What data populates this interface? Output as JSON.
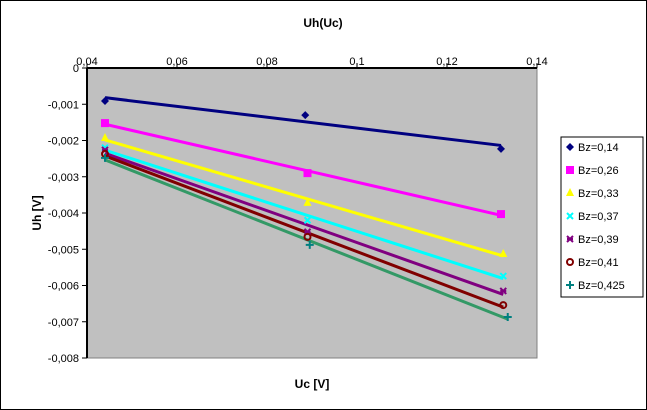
{
  "chart_data": {
    "type": "scatter",
    "title": "Uh(Uc)",
    "xlabel": "Uc [V]",
    "ylabel": "Uh [V]",
    "xlim": [
      0.04,
      0.14
    ],
    "ylim": [
      -0.008,
      0
    ],
    "x_ticks": [
      "0,04",
      "0,06",
      "0,08",
      "0,1",
      "0,12",
      "0,14"
    ],
    "y_ticks": [
      "0",
      "-0,001",
      "-0,002",
      "-0,003",
      "-0,004",
      "-0,005",
      "-0,006",
      "-0,007",
      "-0,008"
    ],
    "grid": false,
    "legend_position": "right",
    "trendlines": "linear",
    "plot_background": "#C0C0C0",
    "series": [
      {
        "name": "Bz=0,14",
        "marker": "diamond",
        "color": "#000080",
        "line_color": "#000080",
        "x": [
          0.044,
          0.0885,
          0.132
        ],
        "y": [
          -0.00091,
          -0.0013,
          -0.00223
        ]
      },
      {
        "name": "Bz=0,26",
        "marker": "square",
        "color": "#FF00FF",
        "line_color": "#FF00FF",
        "x": [
          0.044,
          0.089,
          0.132
        ],
        "y": [
          -0.00152,
          -0.0029,
          -0.00403
        ]
      },
      {
        "name": "Bz=0,33",
        "marker": "triangle",
        "color": "#FFFF00",
        "line_color": "#FFFF00",
        "x": [
          0.044,
          0.089,
          0.1325
        ],
        "y": [
          -0.00193,
          -0.00372,
          -0.00513
        ]
      },
      {
        "name": "Bz=0,37",
        "marker": "x",
        "color": "#00FFFF",
        "line_color": "#00FFFF",
        "x": [
          0.044,
          0.089,
          0.1325
        ],
        "y": [
          -0.0022,
          -0.0042,
          -0.00574
        ]
      },
      {
        "name": "Bz=0,39",
        "marker": "star",
        "color": "#800080",
        "line_color": "#800080",
        "x": [
          0.044,
          0.089,
          0.1325
        ],
        "y": [
          -0.00226,
          -0.00452,
          -0.00615
        ]
      },
      {
        "name": "Bz=0,41",
        "marker": "circle",
        "color": "#800000",
        "line_color": "#800000",
        "x": [
          0.044,
          0.089,
          0.1325
        ],
        "y": [
          -0.00237,
          -0.00466,
          -0.00654
        ]
      },
      {
        "name": "Bz=0,425",
        "marker": "plus",
        "color": "#008080",
        "line_color": "#339966",
        "x": [
          0.044,
          0.0895,
          0.1335
        ],
        "y": [
          -0.00248,
          -0.00488,
          -0.00687
        ]
      }
    ]
  }
}
